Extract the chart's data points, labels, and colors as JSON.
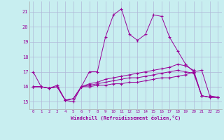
{
  "title": "",
  "xlabel": "Windchill (Refroidissement éolien,°C)",
  "bg_color": "#c8eef0",
  "grid_color": "#b0b8d8",
  "line_color": "#990099",
  "ylim": [
    14.5,
    21.7
  ],
  "xlim": [
    -0.5,
    23.5
  ],
  "yticks": [
    15,
    16,
    17,
    18,
    19,
    20,
    21
  ],
  "xticks": [
    0,
    1,
    2,
    3,
    4,
    5,
    6,
    7,
    8,
    9,
    10,
    11,
    12,
    13,
    14,
    15,
    16,
    17,
    18,
    19,
    20,
    21,
    22,
    23
  ],
  "series": [
    [
      17.0,
      16.0,
      15.9,
      16.1,
      15.1,
      15.0,
      16.0,
      17.0,
      17.0,
      19.3,
      20.8,
      21.2,
      19.5,
      19.1,
      19.5,
      20.8,
      20.7,
      19.3,
      18.4,
      17.5,
      17.0,
      17.1,
      15.4,
      15.3
    ],
    [
      16.0,
      16.0,
      15.9,
      16.0,
      15.1,
      15.2,
      16.0,
      16.0,
      16.1,
      16.1,
      16.2,
      16.2,
      16.3,
      16.3,
      16.4,
      16.5,
      16.6,
      16.6,
      16.7,
      16.8,
      17.0,
      15.4,
      15.3,
      15.3
    ],
    [
      16.0,
      16.0,
      15.9,
      16.0,
      15.1,
      15.2,
      16.0,
      16.1,
      16.2,
      16.3,
      16.4,
      16.5,
      16.6,
      16.6,
      16.7,
      16.8,
      16.9,
      17.0,
      17.1,
      17.0,
      16.9,
      15.4,
      15.3,
      15.3
    ],
    [
      16.0,
      16.0,
      15.9,
      16.0,
      15.1,
      15.2,
      16.0,
      16.2,
      16.3,
      16.5,
      16.6,
      16.7,
      16.8,
      16.9,
      17.0,
      17.1,
      17.2,
      17.3,
      17.5,
      17.4,
      17.1,
      15.4,
      15.3,
      15.3
    ]
  ]
}
